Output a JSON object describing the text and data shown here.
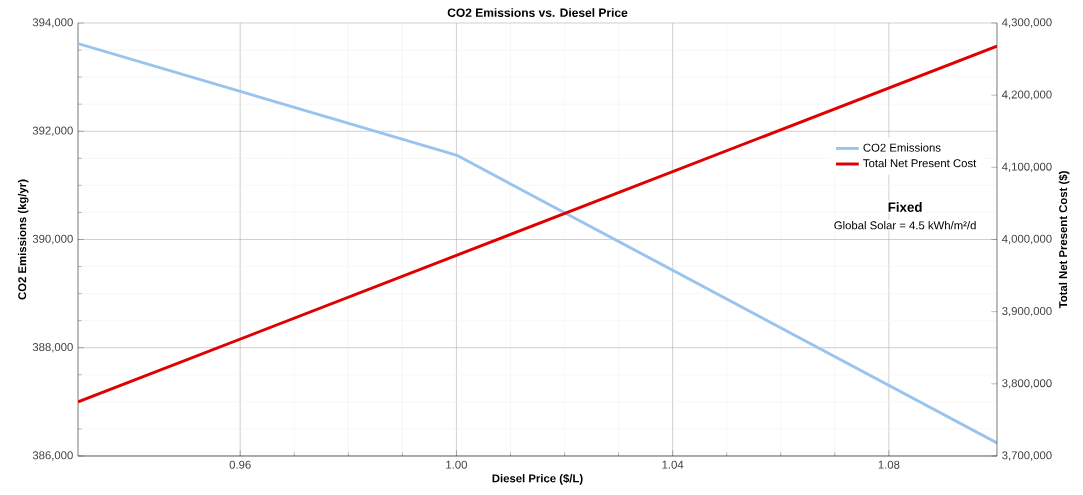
{
  "chart_data": {
    "type": "line",
    "title": "CO2 Emissions vs. Diesel Price",
    "xlabel": "Diesel Price ($/L)",
    "ylabel": "CO2 Emissions (kg/yr)",
    "y2label": "Total Net Present Cost ($)",
    "series": [
      {
        "name": "CO2 Emissions",
        "color": "#99c4ee",
        "x": [
          0.93,
          1.0,
          1.1
        ],
        "values": [
          393620,
          391560,
          386240
        ]
      },
      {
        "name": "Total Net Present Cost",
        "color": "#e00000",
        "axis": "y2",
        "x": [
          0.93,
          1.1
        ],
        "values": [
          3775000,
          4268000
        ]
      }
    ],
    "xlim": [
      0.93,
      1.1
    ],
    "xticks": [
      0.96,
      {
        "value": 1.0,
        "label": "1.00"
      },
      1.04,
      1.08
    ],
    "ylim": [
      386000,
      394000
    ],
    "yticks": [
      {
        "value": 386000,
        "label": "386,000"
      },
      {
        "value": 388000,
        "label": "388,000"
      },
      {
        "value": 390000,
        "label": "390,000"
      },
      {
        "value": 392000,
        "label": "392,000"
      },
      {
        "value": 394000,
        "label": "394,000"
      }
    ],
    "y2lim": [
      3700000,
      4300000
    ],
    "y2ticks": [
      {
        "value": 3700000,
        "label": "3,700,000"
      },
      {
        "value": 3800000,
        "label": "3,800,000"
      },
      {
        "value": 3900000,
        "label": "3,900,000"
      },
      {
        "value": 4000000,
        "label": "4,000,000"
      },
      {
        "value": 4100000,
        "label": "4,100,000"
      },
      {
        "value": 4200000,
        "label": "4,200,000"
      },
      {
        "value": 4300000,
        "label": "4,300,000"
      }
    ],
    "grid": true,
    "legend": "right",
    "annotations": [
      "Fixed",
      "Global Solar = 4.5 kWh/m²/d"
    ]
  }
}
